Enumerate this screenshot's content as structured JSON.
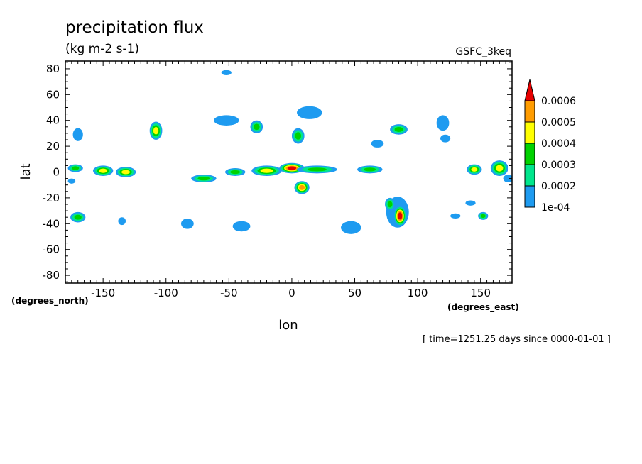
{
  "chart_data": {
    "type": "heatmap",
    "title": "precipitation flux",
    "subtitle": "(kg m-2 s-1)",
    "source_label": "GSFC_3keq",
    "xlabel": "lon",
    "ylabel": "lat",
    "x_units": "(degrees_east)",
    "y_units": "(degrees_north)",
    "time_label": "[ time=1251.25 days since 0000-01-01 ]",
    "xlim": [
      -180,
      175
    ],
    "ylim": [
      -86,
      86
    ],
    "x_ticks": [
      -150,
      -100,
      -50,
      0,
      50,
      100,
      150
    ],
    "x_tick_labels": [
      "-150",
      "-100",
      "-50",
      "0",
      "50",
      "100",
      "150"
    ],
    "y_ticks": [
      -80,
      -60,
      -40,
      -20,
      0,
      20,
      40,
      60,
      80
    ],
    "y_tick_labels": [
      "-80",
      "-60",
      "-40",
      "-20",
      "0",
      "20",
      "40",
      "60",
      "80"
    ],
    "grid": false,
    "legend": {
      "placement": "right",
      "levels": [
        0.0001,
        0.0002,
        0.0003,
        0.0004,
        0.0005,
        0.0006
      ],
      "labels": [
        "1e-04",
        "0.0002",
        "0.0003",
        "0.0004",
        "0.0005",
        "0.0006"
      ],
      "colors": [
        "#1e9bf0",
        "#00e68c",
        "#00d200",
        "#ffff00",
        "#ff9c00",
        "#e60000"
      ]
    },
    "features": [
      {
        "lon": 0,
        "lat": 3,
        "rx": 10,
        "ry": 4,
        "level": 0.0006
      },
      {
        "lon": 8,
        "lat": -12,
        "rx": 6,
        "ry": 5,
        "level": 0.0005
      },
      {
        "lon": 86,
        "lat": -34,
        "rx": 5,
        "ry": 8,
        "level": 0.0006
      },
      {
        "lon": -108,
        "lat": 32,
        "rx": 5,
        "ry": 7,
        "level": 0.0004
      },
      {
        "lon": -132,
        "lat": 0,
        "rx": 8,
        "ry": 4,
        "level": 0.0004
      },
      {
        "lon": -150,
        "lat": 1,
        "rx": 8,
        "ry": 4,
        "level": 0.0004
      },
      {
        "lon": -172,
        "lat": 3,
        "rx": 6,
        "ry": 3,
        "level": 0.0003
      },
      {
        "lon": -70,
        "lat": -5,
        "rx": 10,
        "ry": 3,
        "level": 0.0003
      },
      {
        "lon": -45,
        "lat": 0,
        "rx": 8,
        "ry": 3,
        "level": 0.0003
      },
      {
        "lon": -20,
        "lat": 1,
        "rx": 12,
        "ry": 4,
        "level": 0.0004
      },
      {
        "lon": 20,
        "lat": 2,
        "rx": 16,
        "ry": 3,
        "level": 0.0003
      },
      {
        "lon": 62,
        "lat": 2,
        "rx": 10,
        "ry": 3,
        "level": 0.0003
      },
      {
        "lon": 145,
        "lat": 2,
        "rx": 6,
        "ry": 4,
        "level": 0.0004
      },
      {
        "lon": 165,
        "lat": 3,
        "rx": 7,
        "ry": 6,
        "level": 0.0004
      },
      {
        "lon": 5,
        "lat": 28,
        "rx": 5,
        "ry": 6,
        "level": 0.0003
      },
      {
        "lon": -28,
        "lat": 35,
        "rx": 5,
        "ry": 5,
        "level": 0.0003
      },
      {
        "lon": 85,
        "lat": 33,
        "rx": 7,
        "ry": 4,
        "level": 0.0003
      },
      {
        "lon": -170,
        "lat": -35,
        "rx": 6,
        "ry": 4,
        "level": 0.0003
      },
      {
        "lon": 78,
        "lat": -25,
        "rx": 4,
        "ry": 5,
        "level": 0.0003
      },
      {
        "lon": 152,
        "lat": -34,
        "rx": 4,
        "ry": 3,
        "level": 0.0003
      }
    ],
    "light_areas": [
      {
        "lon": -170,
        "lat": 29,
        "rx": 4,
        "ry": 5
      },
      {
        "lon": -52,
        "lat": 77,
        "rx": 4,
        "ry": 2
      },
      {
        "lon": -52,
        "lat": 40,
        "rx": 10,
        "ry": 4
      },
      {
        "lon": 14,
        "lat": 46,
        "rx": 10,
        "ry": 5
      },
      {
        "lon": 120,
        "lat": 38,
        "rx": 5,
        "ry": 6
      },
      {
        "lon": 122,
        "lat": 26,
        "rx": 4,
        "ry": 3
      },
      {
        "lon": 68,
        "lat": 22,
        "rx": 5,
        "ry": 3
      },
      {
        "lon": 47,
        "lat": -43,
        "rx": 8,
        "ry": 5
      },
      {
        "lon": 84,
        "lat": -31,
        "rx": 9,
        "ry": 12
      },
      {
        "lon": -83,
        "lat": -40,
        "rx": 5,
        "ry": 4
      },
      {
        "lon": -40,
        "lat": -42,
        "rx": 7,
        "ry": 4
      },
      {
        "lon": -135,
        "lat": -38,
        "rx": 3,
        "ry": 3
      },
      {
        "lon": 130,
        "lat": -34,
        "rx": 4,
        "ry": 2
      },
      {
        "lon": 142,
        "lat": -24,
        "rx": 4,
        "ry": 2
      },
      {
        "lon": 172,
        "lat": -5,
        "rx": 4,
        "ry": 3
      },
      {
        "lon": -175,
        "lat": -7,
        "rx": 3,
        "ry": 2
      }
    ]
  }
}
